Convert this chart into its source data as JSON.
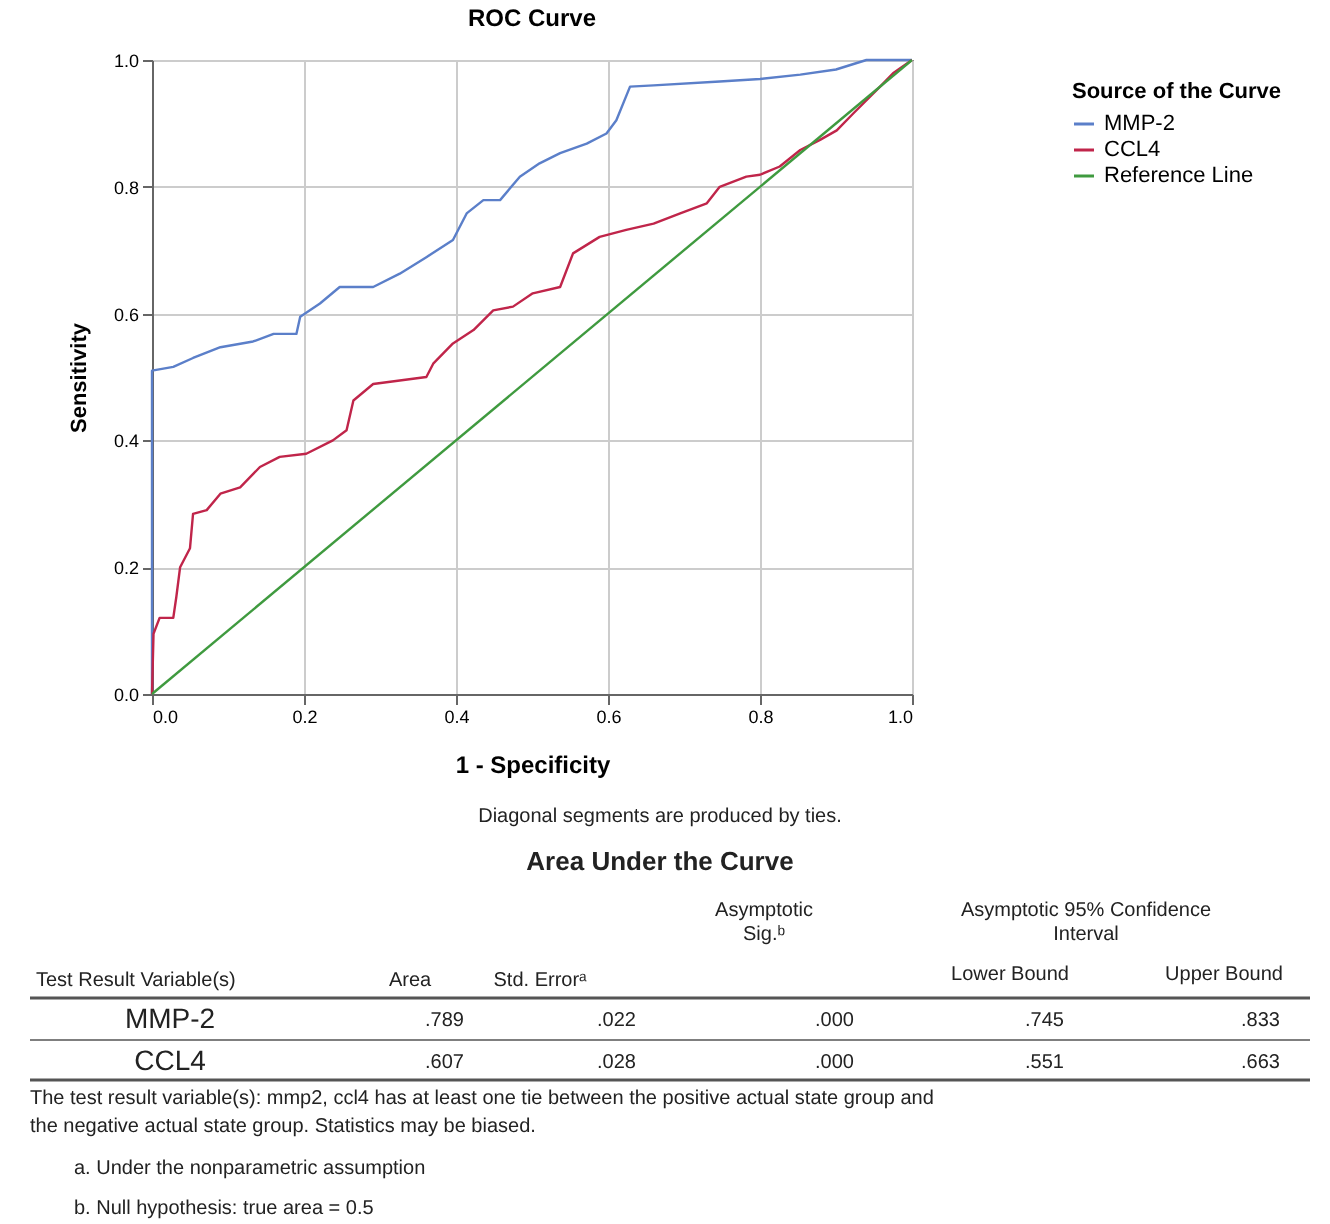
{
  "chart_data": {
    "type": "line",
    "title": "ROC Curve",
    "xlabel": "1 - Specificity",
    "ylabel": "Sensitivity",
    "legend_title": "Source of the Curve",
    "series": [
      {
        "name": "MMP-2",
        "color": "#5b7fc9",
        "x": [
          0,
          0,
          0.028,
          0.054,
          0.09,
          0.133,
          0.16,
          0.19,
          0.195,
          0.221,
          0.247,
          0.291,
          0.326,
          0.361,
          0.396,
          0.414,
          0.436,
          0.458,
          0.484,
          0.51,
          0.537,
          0.572,
          0.598,
          0.611,
          0.629,
          0.66,
          0.747,
          0.8,
          0.853,
          0.9,
          0.94,
          1
        ],
        "values": [
          0,
          0.51,
          0.516,
          0.53,
          0.547,
          0.556,
          0.568,
          0.568,
          0.595,
          0.616,
          0.642,
          0.642,
          0.663,
          0.689,
          0.716,
          0.758,
          0.779,
          0.779,
          0.816,
          0.837,
          0.853,
          0.868,
          0.884,
          0.905,
          0.958,
          0.96,
          0.966,
          0.97,
          0.977,
          0.985,
          1,
          1
        ]
      },
      {
        "name": "CCL4",
        "color": "#c0254a",
        "x": [
          0,
          0.002,
          0.01,
          0.028,
          0.032,
          0.037,
          0.05,
          0.054,
          0.072,
          0.09,
          0.116,
          0.142,
          0.168,
          0.203,
          0.238,
          0.256,
          0.265,
          0.291,
          0.361,
          0.37,
          0.396,
          0.423,
          0.449,
          0.475,
          0.501,
          0.537,
          0.554,
          0.589,
          0.624,
          0.66,
          0.695,
          0.73,
          0.747,
          0.782,
          0.8,
          0.826,
          0.853,
          0.879,
          0.901,
          0.923,
          0.958,
          0.975,
          1
        ],
        "values": [
          0,
          0.095,
          0.12,
          0.12,
          0.153,
          0.2,
          0.23,
          0.284,
          0.29,
          0.316,
          0.326,
          0.358,
          0.374,
          0.379,
          0.4,
          0.416,
          0.463,
          0.489,
          0.5,
          0.521,
          0.553,
          0.574,
          0.605,
          0.611,
          0.632,
          0.642,
          0.695,
          0.721,
          0.732,
          0.742,
          0.758,
          0.774,
          0.8,
          0.816,
          0.819,
          0.832,
          0.858,
          0.874,
          0.889,
          0.916,
          0.958,
          0.979,
          1
        ]
      },
      {
        "name": "Reference Line",
        "color": "#3f9a3f",
        "x": [
          0,
          1
        ],
        "values": [
          0,
          1
        ]
      }
    ],
    "xlim": [
      0,
      1
    ],
    "ylim": [
      0,
      1
    ],
    "xticks": [
      {
        "value": 0,
        "label": "0.0"
      },
      0.2,
      0.4,
      0.6,
      0.8,
      {
        "value": 1,
        "label": "1.0"
      }
    ],
    "yticks": [
      {
        "value": 0,
        "label": "0.0"
      },
      0.2,
      0.4,
      0.6,
      0.8,
      {
        "value": 1,
        "label": "1.0"
      }
    ],
    "grid": true,
    "legend": "top right",
    "marker": "none",
    "line_style": "solid",
    "annotations": [
      "Diagonal segments are produced by ties.",
      "Area Under the Curve",
      "Test Result Variable(s)",
      "Area",
      "Std. Errorᵃ",
      "Asymptotic",
      "Sig.ᵇ",
      "Asymptotic 95% Confidence",
      "Interval",
      "Lower Bound",
      "Upper Bound",
      "MMP-2",
      ".789",
      ".022",
      ".000",
      ".745",
      ".833",
      "CCL4",
      ".607",
      ".028",
      ".000",
      ".551",
      ".663",
      "The test result variable(s): mmp2, ccl4 has at least one tie between the positive actual state group and",
      "the negative actual state group. Statistics may be biased.",
      "a. Under the nonparametric assumption",
      "b. Null hypothesis: true area = 0.5"
    ]
  }
}
